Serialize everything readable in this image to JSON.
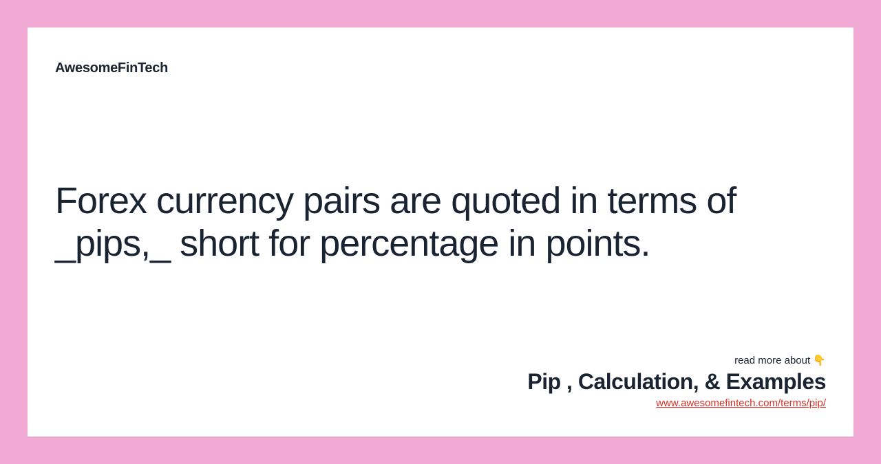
{
  "brand": "AwesomeFinTech",
  "main_text": "Forex currency pairs are quoted in terms of _pips,_ short for percentage in points.",
  "footer": {
    "read_more": "read more about 👇",
    "title": "Pip , Calculation, & Examples",
    "url": "www.awesomefintech.com/terms/pip/"
  },
  "colors": {
    "background": "#f0aad4",
    "card": "#ffffff",
    "text": "#1a2332",
    "link": "#d93025"
  }
}
